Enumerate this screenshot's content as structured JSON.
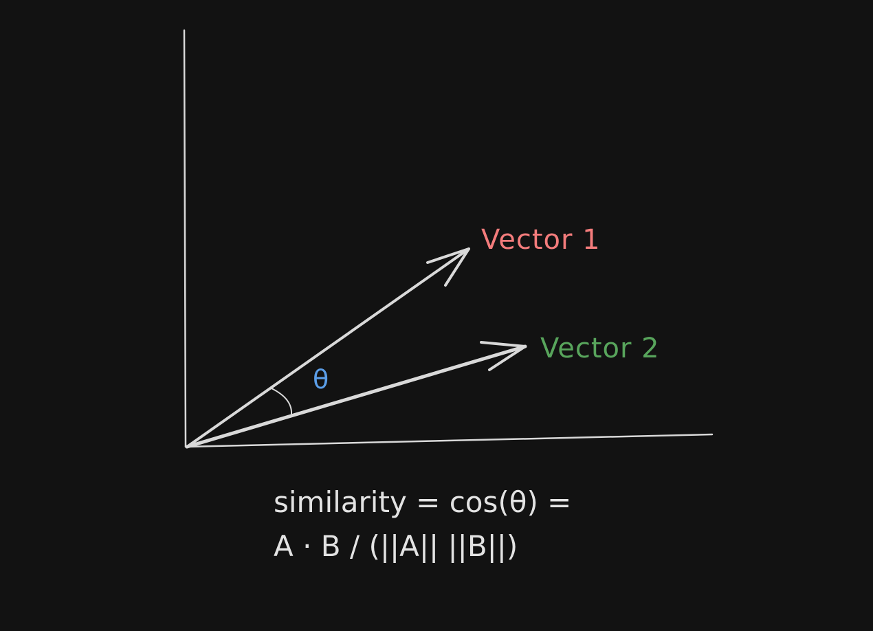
{
  "labels": {
    "vector1": "Vector 1",
    "vector2": "Vector 2",
    "angle": "θ"
  },
  "formula": {
    "line1": "similarity = cos(θ) =",
    "line2": "A · B / (||A|| ||B||)"
  },
  "colors": {
    "background": "#121212",
    "stroke": "#d9d9d9",
    "vector1": "#f47c7c",
    "vector2": "#58a55c",
    "angle": "#5b9ee8",
    "formula": "#e3e3e3"
  }
}
